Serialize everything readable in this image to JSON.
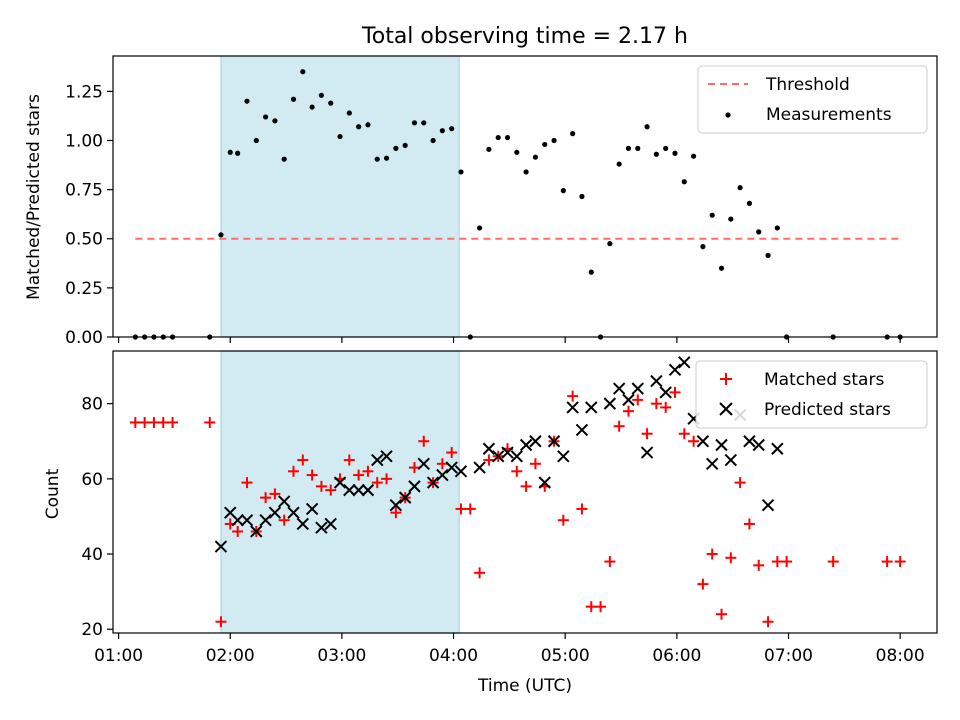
{
  "title": "Total observing time = 2.17 h",
  "chart_data": [
    {
      "type": "scatter",
      "panel": "top",
      "title": "Total observing time = 2.17 h",
      "xlabel": "",
      "ylabel": "Matched/Predicted stars",
      "x_unit": "hours UTC",
      "xlim": [
        0.95,
        8.33
      ],
      "ylim": [
        0,
        1.43
      ],
      "yticks": [
        0.0,
        0.25,
        0.5,
        0.75,
        1.0,
        1.25
      ],
      "ytick_labels": [
        "0.00",
        "0.25",
        "0.50",
        "0.75",
        "1.00",
        "1.25"
      ],
      "shaded_span": {
        "start": "01:55",
        "end": "04:03",
        "color": "#add8e6"
      },
      "threshold": {
        "name": "Threshold",
        "value": 0.5,
        "x_start": "01:09",
        "x_end": "08:00",
        "color": "#ff6b6b",
        "style": "dashed"
      },
      "legend": {
        "position": "upper right",
        "entries": [
          "Threshold",
          "Measurements"
        ]
      },
      "series": [
        {
          "name": "Measurements",
          "color": "#000000",
          "marker": "dot",
          "points": [
            [
              "01:09",
              0.0
            ],
            [
              "01:14",
              0.0
            ],
            [
              "01:19",
              0.0
            ],
            [
              "01:24",
              0.0
            ],
            [
              "01:29",
              0.0
            ],
            [
              "01:49",
              0.0
            ],
            [
              "01:55",
              0.52
            ],
            [
              "02:00",
              0.94
            ],
            [
              "02:04",
              0.935
            ],
            [
              "02:09",
              1.2
            ],
            [
              "02:14",
              1.0
            ],
            [
              "02:19",
              1.12
            ],
            [
              "02:24",
              1.1
            ],
            [
              "02:29",
              0.905
            ],
            [
              "02:34",
              1.21
            ],
            [
              "02:39",
              1.35
            ],
            [
              "02:44",
              1.17
            ],
            [
              "02:49",
              1.23
            ],
            [
              "02:54",
              1.19
            ],
            [
              "02:59",
              1.02
            ],
            [
              "03:04",
              1.14
            ],
            [
              "03:09",
              1.07
            ],
            [
              "03:14",
              1.08
            ],
            [
              "03:19",
              0.905
            ],
            [
              "03:24",
              0.91
            ],
            [
              "03:29",
              0.96
            ],
            [
              "03:34",
              0.975
            ],
            [
              "03:39",
              1.09
            ],
            [
              "03:44",
              1.09
            ],
            [
              "03:49",
              1.0
            ],
            [
              "03:54",
              1.05
            ],
            [
              "03:59",
              1.06
            ],
            [
              "04:04",
              0.84
            ],
            [
              "04:09",
              0.0
            ],
            [
              "04:14",
              0.555
            ],
            [
              "04:19",
              0.955
            ],
            [
              "04:24",
              1.015
            ],
            [
              "04:29",
              1.015
            ],
            [
              "04:34",
              0.94
            ],
            [
              "04:39",
              0.84
            ],
            [
              "04:44",
              0.915
            ],
            [
              "04:49",
              0.98
            ],
            [
              "04:54",
              1.0
            ],
            [
              "04:59",
              0.745
            ],
            [
              "05:04",
              1.035
            ],
            [
              "05:09",
              0.715
            ],
            [
              "05:14",
              0.33
            ],
            [
              "05:19",
              0.0
            ],
            [
              "05:24",
              0.475
            ],
            [
              "05:29",
              0.88
            ],
            [
              "05:34",
              0.96
            ],
            [
              "05:39",
              0.96
            ],
            [
              "05:44",
              1.07
            ],
            [
              "05:49",
              0.93
            ],
            [
              "05:54",
              0.96
            ],
            [
              "05:59",
              0.935
            ],
            [
              "06:04",
              0.79
            ],
            [
              "06:09",
              0.92
            ],
            [
              "06:14",
              0.46
            ],
            [
              "06:19",
              0.62
            ],
            [
              "06:24",
              0.35
            ],
            [
              "06:29",
              0.6
            ],
            [
              "06:34",
              0.76
            ],
            [
              "06:39",
              0.68
            ],
            [
              "06:44",
              0.535
            ],
            [
              "06:49",
              0.415
            ],
            [
              "06:54",
              0.555
            ],
            [
              "06:59",
              0.0
            ],
            [
              "07:24",
              0.0
            ],
            [
              "07:53",
              0.0
            ],
            [
              "08:00",
              0.0
            ]
          ]
        }
      ]
    },
    {
      "type": "scatter",
      "panel": "bottom",
      "xlabel": "Time (UTC)",
      "ylabel": "Count",
      "x_unit": "hours UTC",
      "xlim": [
        0.95,
        8.33
      ],
      "ylim": [
        19,
        94
      ],
      "xticks": [
        "01:00",
        "02:00",
        "03:00",
        "04:00",
        "05:00",
        "06:00",
        "07:00",
        "08:00"
      ],
      "yticks": [
        20,
        40,
        60,
        80
      ],
      "shaded_span": {
        "start": "01:55",
        "end": "04:03",
        "color": "#add8e6"
      },
      "legend": {
        "position": "upper right",
        "entries": [
          "Matched stars",
          "Predicted stars"
        ]
      },
      "series": [
        {
          "name": "Matched stars",
          "color": "#ff0000",
          "marker": "plus",
          "points": [
            [
              "01:09",
              75
            ],
            [
              "01:14",
              75
            ],
            [
              "01:19",
              75
            ],
            [
              "01:24",
              75
            ],
            [
              "01:29",
              75
            ],
            [
              "01:49",
              75
            ],
            [
              "01:55",
              22
            ],
            [
              "02:00",
              48
            ],
            [
              "02:04",
              46
            ],
            [
              "02:09",
              59
            ],
            [
              "02:14",
              46
            ],
            [
              "02:19",
              55
            ],
            [
              "02:24",
              56
            ],
            [
              "02:29",
              49
            ],
            [
              "02:34",
              62
            ],
            [
              "02:39",
              65
            ],
            [
              "02:44",
              61
            ],
            [
              "02:49",
              58
            ],
            [
              "02:54",
              57
            ],
            [
              "02:59",
              60
            ],
            [
              "03:04",
              65
            ],
            [
              "03:09",
              61
            ],
            [
              "03:14",
              62
            ],
            [
              "03:19",
              59
            ],
            [
              "03:24",
              60
            ],
            [
              "03:29",
              51
            ],
            [
              "03:34",
              55
            ],
            [
              "03:39",
              63
            ],
            [
              "03:44",
              70
            ],
            [
              "03:49",
              59
            ],
            [
              "03:54",
              64
            ],
            [
              "03:59",
              67
            ],
            [
              "04:04",
              52
            ],
            [
              "04:09",
              52
            ],
            [
              "04:14",
              35
            ],
            [
              "04:19",
              65
            ],
            [
              "04:24",
              66
            ],
            [
              "04:29",
              68
            ],
            [
              "04:34",
              62
            ],
            [
              "04:39",
              58
            ],
            [
              "04:44",
              64
            ],
            [
              "04:49",
              58
            ],
            [
              "04:54",
              70
            ],
            [
              "04:59",
              49
            ],
            [
              "05:04",
              82
            ],
            [
              "05:09",
              52
            ],
            [
              "05:14",
              26
            ],
            [
              "05:19",
              26
            ],
            [
              "05:24",
              38
            ],
            [
              "05:29",
              74
            ],
            [
              "05:34",
              78
            ],
            [
              "05:39",
              81
            ],
            [
              "05:44",
              72
            ],
            [
              "05:49",
              80
            ],
            [
              "05:54",
              79
            ],
            [
              "05:59",
              83
            ],
            [
              "06:04",
              72
            ],
            [
              "06:09",
              70
            ],
            [
              "06:14",
              32
            ],
            [
              "06:19",
              40
            ],
            [
              "06:24",
              24
            ],
            [
              "06:29",
              39
            ],
            [
              "06:34",
              59
            ],
            [
              "06:39",
              48
            ],
            [
              "06:44",
              37
            ],
            [
              "06:49",
              22
            ],
            [
              "06:54",
              38
            ],
            [
              "06:59",
              38
            ],
            [
              "07:24",
              38
            ],
            [
              "07:53",
              38
            ],
            [
              "08:00",
              38
            ]
          ]
        },
        {
          "name": "Predicted stars",
          "color": "#000000",
          "marker": "x",
          "points": [
            [
              "01:55",
              42
            ],
            [
              "02:00",
              51
            ],
            [
              "02:04",
              49
            ],
            [
              "02:09",
              49
            ],
            [
              "02:14",
              46
            ],
            [
              "02:19",
              49
            ],
            [
              "02:24",
              51
            ],
            [
              "02:29",
              54
            ],
            [
              "02:34",
              51
            ],
            [
              "02:39",
              48
            ],
            [
              "02:44",
              52
            ],
            [
              "02:49",
              47
            ],
            [
              "02:54",
              48
            ],
            [
              "02:59",
              59
            ],
            [
              "03:04",
              57
            ],
            [
              "03:09",
              57
            ],
            [
              "03:14",
              57
            ],
            [
              "03:19",
              65
            ],
            [
              "03:24",
              66
            ],
            [
              "03:29",
              53
            ],
            [
              "03:34",
              55
            ],
            [
              "03:39",
              58
            ],
            [
              "03:44",
              64
            ],
            [
              "03:49",
              59
            ],
            [
              "03:54",
              61
            ],
            [
              "03:59",
              63
            ],
            [
              "04:04",
              62
            ],
            [
              "04:14",
              63
            ],
            [
              "04:19",
              68
            ],
            [
              "04:24",
              66
            ],
            [
              "04:29",
              67
            ],
            [
              "04:34",
              66
            ],
            [
              "04:39",
              69
            ],
            [
              "04:44",
              70
            ],
            [
              "04:49",
              59
            ],
            [
              "04:54",
              70
            ],
            [
              "04:59",
              66
            ],
            [
              "05:04",
              79
            ],
            [
              "05:09",
              73
            ],
            [
              "05:14",
              79
            ],
            [
              "05:24",
              80
            ],
            [
              "05:29",
              84
            ],
            [
              "05:34",
              81
            ],
            [
              "05:39",
              84
            ],
            [
              "05:44",
              67
            ],
            [
              "05:49",
              86
            ],
            [
              "05:54",
              83
            ],
            [
              "05:59",
              89
            ],
            [
              "06:04",
              91
            ],
            [
              "06:09",
              76
            ],
            [
              "06:14",
              70
            ],
            [
              "06:19",
              64
            ],
            [
              "06:24",
              69
            ],
            [
              "06:29",
              65
            ],
            [
              "06:34",
              77
            ],
            [
              "06:39",
              70
            ],
            [
              "06:44",
              69
            ],
            [
              "06:49",
              53
            ],
            [
              "06:54",
              68
            ]
          ]
        }
      ]
    }
  ]
}
